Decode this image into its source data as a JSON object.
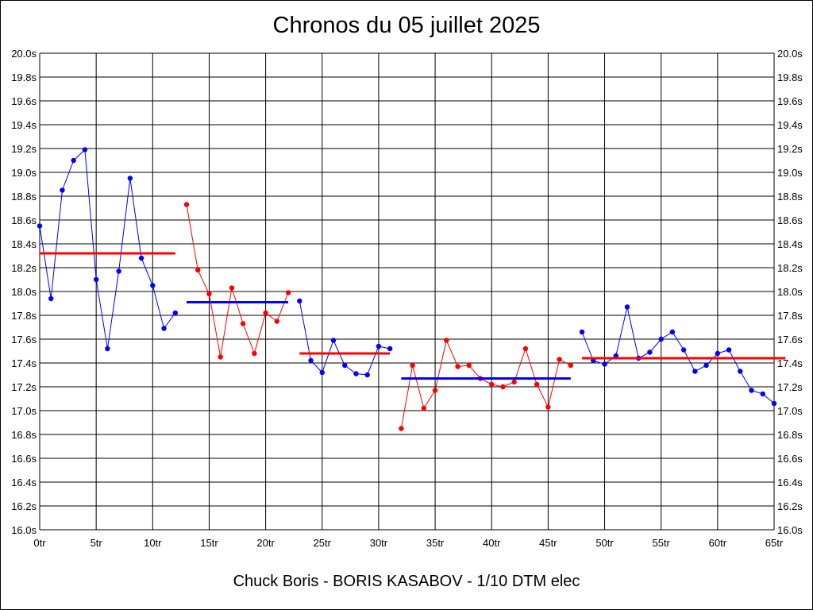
{
  "title": "Chronos du 05 juillet 2025",
  "footer": "Chuck Boris - BORIS KASABOV - 1/10 DTM elec",
  "colors": {
    "grid": "#000000",
    "blue": "#0000ff",
    "red": "#ff0000",
    "background": "#ffffff"
  },
  "chart_data": {
    "type": "line",
    "title": "Chronos du 05 juillet 2025",
    "xlabel": "",
    "ylabel": "",
    "xlim": [
      0,
      65
    ],
    "ylim": [
      16.0,
      20.0
    ],
    "grid": true,
    "legend": "none",
    "x_ticks": [
      "0tr",
      "5tr",
      "10tr",
      "15tr",
      "20tr",
      "25tr",
      "30tr",
      "35tr",
      "40tr",
      "45tr",
      "50tr",
      "55tr",
      "60tr",
      "65tr"
    ],
    "y_ticks": [
      "20.0s",
      "19.8s",
      "19.6s",
      "19.4s",
      "19.2s",
      "19.0s",
      "18.8s",
      "18.6s",
      "18.4s",
      "18.2s",
      "18.0s",
      "17.8s",
      "17.6s",
      "17.4s",
      "17.2s",
      "17.0s",
      "16.8s",
      "16.6s",
      "16.4s",
      "16.2s",
      "16.0s"
    ],
    "x_tick_values": [
      0,
      5,
      10,
      15,
      20,
      25,
      30,
      35,
      40,
      45,
      50,
      55,
      60,
      65
    ],
    "y_tick_values": [
      20.0,
      19.8,
      19.6,
      19.4,
      19.2,
      19.0,
      18.8,
      18.6,
      18.4,
      18.2,
      18.0,
      17.8,
      17.6,
      17.4,
      17.2,
      17.0,
      16.8,
      16.6,
      16.4,
      16.2,
      16.0
    ],
    "series": [
      {
        "color": "#0000ff",
        "x": [
          0,
          1,
          2,
          3,
          4,
          5,
          6,
          7,
          8,
          9,
          10,
          11,
          12
        ],
        "y": [
          18.55,
          17.94,
          18.85,
          19.1,
          19.19,
          18.1,
          17.52,
          18.17,
          18.95,
          18.28,
          18.05,
          17.69,
          17.82
        ],
        "mean": 18.32,
        "mean_color": "#ff0000",
        "mean_x": [
          0,
          12
        ]
      },
      {
        "color": "#ff0000",
        "x": [
          13,
          14,
          15,
          16,
          17,
          18,
          19,
          20,
          21,
          22
        ],
        "y": [
          18.73,
          18.18,
          17.98,
          17.45,
          18.03,
          17.73,
          17.48,
          17.82,
          17.75,
          17.99
        ],
        "mean": 17.91,
        "mean_color": "#0000ff",
        "mean_x": [
          13,
          22
        ]
      },
      {
        "color": "#0000ff",
        "x": [
          23,
          24,
          25,
          26,
          27,
          28,
          29,
          30,
          31
        ],
        "y": [
          17.92,
          17.42,
          17.32,
          17.59,
          17.38,
          17.31,
          17.3,
          17.54,
          17.52
        ],
        "mean": 17.48,
        "mean_color": "#ff0000",
        "mean_x": [
          23,
          31
        ]
      },
      {
        "color": "#ff0000",
        "x": [
          32,
          33,
          34,
          35,
          36,
          37,
          38,
          39,
          40,
          41,
          42,
          43,
          44,
          45,
          46,
          47
        ],
        "y": [
          16.85,
          17.38,
          17.02,
          17.17,
          17.59,
          17.37,
          17.38,
          17.27,
          17.22,
          17.2,
          17.24,
          17.52,
          17.22,
          17.03,
          17.43,
          17.38
        ],
        "mean": 17.27,
        "mean_color": "#0000ff",
        "mean_x": [
          32,
          47
        ]
      },
      {
        "color": "#0000ff",
        "x": [
          48,
          49,
          50,
          51,
          52,
          53,
          54,
          55,
          56,
          57,
          58,
          59,
          60,
          61,
          62,
          63,
          64,
          65
        ],
        "y": [
          17.66,
          17.42,
          17.39,
          17.46,
          17.87,
          17.44,
          17.49,
          17.6,
          17.66,
          17.51,
          17.33,
          17.38,
          17.48,
          17.51,
          17.33,
          17.17,
          17.14,
          17.06
        ],
        "mean": 17.44,
        "mean_color": "#ff0000",
        "mean_x": [
          48,
          66
        ]
      }
    ]
  }
}
